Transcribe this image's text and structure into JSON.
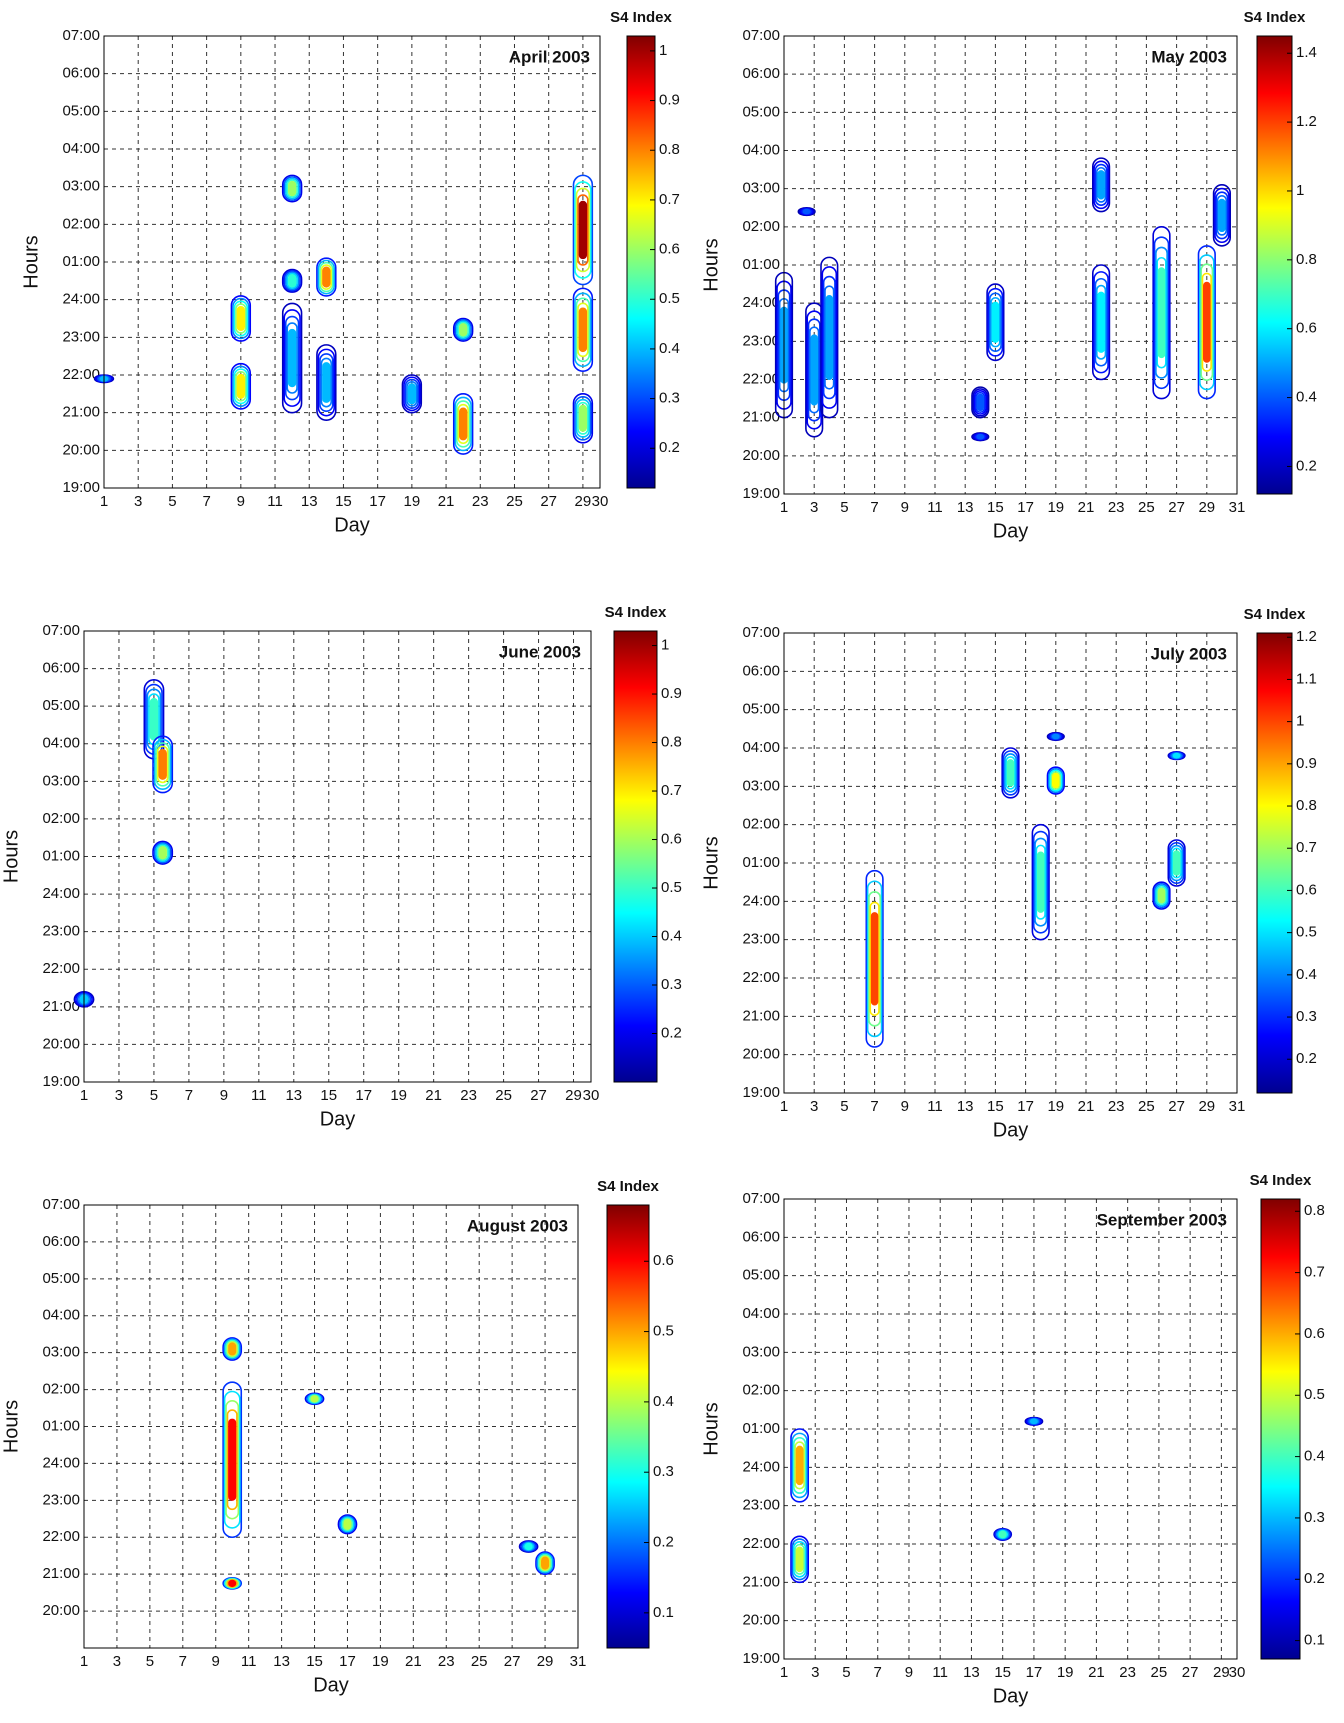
{
  "chart_data": [
    {
      "type": "contour",
      "title": "April 2003",
      "x_label": "Day",
      "y_label": "Hours",
      "colorbar_label": "S4 Index",
      "xlim": [
        1,
        30
      ],
      "xticks": [
        1,
        3,
        5,
        7,
        9,
        11,
        13,
        15,
        17,
        19,
        21,
        23,
        25,
        27,
        29,
        30
      ],
      "ylim": [
        19,
        31
      ],
      "yticks": [
        {
          "value": 19,
          "label": "19:00"
        },
        {
          "value": 20,
          "label": "20:00"
        },
        {
          "value": 21,
          "label": "21:00"
        },
        {
          "value": 22,
          "label": "22:00"
        },
        {
          "value": 23,
          "label": "23:00"
        },
        {
          "value": 24,
          "label": "24:00"
        },
        {
          "value": 25,
          "label": "01:00"
        },
        {
          "value": 26,
          "label": "02:00"
        },
        {
          "value": 27,
          "label": "03:00"
        },
        {
          "value": 28,
          "label": "04:00"
        },
        {
          "value": 29,
          "label": "05:00"
        },
        {
          "value": 30,
          "label": "06:00"
        },
        {
          "value": 31,
          "label": "07:00"
        }
      ],
      "clim": [
        0.12,
        1.03
      ],
      "cticks": [
        0.2,
        0.3,
        0.4,
        0.5,
        0.6,
        0.7,
        0.8,
        0.9,
        1
      ],
      "grid": true,
      "blobs": [
        {
          "x": 1,
          "y0": 21.8,
          "y1": 22.0,
          "peak": 0.4
        },
        {
          "x": 9,
          "y0": 22.9,
          "y1": 24.1,
          "peak": 0.7
        },
        {
          "x": 9,
          "y0": 21.1,
          "y1": 22.3,
          "peak": 0.7
        },
        {
          "x": 12,
          "y0": 26.6,
          "y1": 27.3,
          "peak": 0.6
        },
        {
          "x": 12,
          "y0": 24.2,
          "y1": 24.8,
          "peak": 0.5
        },
        {
          "x": 12,
          "y0": 21,
          "y1": 23.9,
          "peak": 0.4
        },
        {
          "x": 14,
          "y0": 24.1,
          "y1": 25.1,
          "peak": 0.8
        },
        {
          "x": 14,
          "y0": 20.8,
          "y1": 22.8,
          "peak": 0.4
        },
        {
          "x": 19,
          "y0": 21,
          "y1": 22,
          "peak": 0.4
        },
        {
          "x": 22,
          "y0": 22.9,
          "y1": 23.5,
          "peak": 0.6
        },
        {
          "x": 22,
          "y0": 19.9,
          "y1": 21.5,
          "peak": 0.8
        },
        {
          "x": 29,
          "y0": 24.4,
          "y1": 27.3,
          "peak": 1
        },
        {
          "x": 29,
          "y0": 22.1,
          "y1": 24.3,
          "peak": 0.8
        },
        {
          "x": 29,
          "y0": 20.2,
          "y1": 21.5,
          "peak": 0.6
        }
      ]
    },
    {
      "type": "contour",
      "title": "May 2003",
      "x_label": "Day",
      "y_label": "Hours",
      "colorbar_label": "S4 Index",
      "xlim": [
        1,
        31
      ],
      "xticks": [
        1,
        3,
        5,
        7,
        9,
        11,
        13,
        15,
        17,
        19,
        21,
        23,
        25,
        27,
        29,
        31
      ],
      "ylim": [
        19,
        31
      ],
      "yticks": [
        {
          "value": 19,
          "label": "19:00"
        },
        {
          "value": 20,
          "label": "20:00"
        },
        {
          "value": 21,
          "label": "21:00"
        },
        {
          "value": 22,
          "label": "22:00"
        },
        {
          "value": 23,
          "label": "23:00"
        },
        {
          "value": 24,
          "label": "24:00"
        },
        {
          "value": 25,
          "label": "01:00"
        },
        {
          "value": 26,
          "label": "02:00"
        },
        {
          "value": 27,
          "label": "03:00"
        },
        {
          "value": 28,
          "label": "04:00"
        },
        {
          "value": 29,
          "label": "05:00"
        },
        {
          "value": 30,
          "label": "06:00"
        },
        {
          "value": 31,
          "label": "07:00"
        }
      ],
      "clim": [
        0.12,
        1.45
      ],
      "cticks": [
        0.2,
        0.4,
        0.6,
        0.8,
        1,
        1.2,
        1.4
      ],
      "grid": true,
      "blobs": [
        {
          "x": 1,
          "y0": 21,
          "y1": 24.8,
          "peak": 0.5
        },
        {
          "x": 2.5,
          "y0": 26.3,
          "y1": 26.5,
          "peak": 0.4
        },
        {
          "x": 3,
          "y0": 20.5,
          "y1": 24,
          "peak": 0.5
        },
        {
          "x": 4,
          "y0": 21,
          "y1": 25.2,
          "peak": 0.5
        },
        {
          "x": 14,
          "y0": 20.4,
          "y1": 20.6,
          "peak": 0.4
        },
        {
          "x": 14,
          "y0": 21,
          "y1": 21.8,
          "peak": 0.4
        },
        {
          "x": 15,
          "y0": 22.5,
          "y1": 24.5,
          "peak": 0.6
        },
        {
          "x": 22,
          "y0": 22,
          "y1": 25,
          "peak": 0.6
        },
        {
          "x": 22,
          "y0": 26.4,
          "y1": 27.8,
          "peak": 0.5
        },
        {
          "x": 26,
          "y0": 21.5,
          "y1": 26,
          "peak": 0.7
        },
        {
          "x": 29,
          "y0": 21.5,
          "y1": 25.5,
          "peak": 1.2
        },
        {
          "x": 30,
          "y0": 25.5,
          "y1": 27.1,
          "peak": 0.5
        }
      ]
    },
    {
      "type": "contour",
      "title": "June 2003",
      "x_label": "Day",
      "y_label": "Hours",
      "colorbar_label": "S4 Index",
      "xlim": [
        1,
        30
      ],
      "xticks": [
        1,
        3,
        5,
        7,
        9,
        11,
        13,
        15,
        17,
        19,
        21,
        23,
        25,
        27,
        29,
        30
      ],
      "ylim": [
        19,
        31
      ],
      "yticks": [
        {
          "value": 19,
          "label": "19:00"
        },
        {
          "value": 20,
          "label": "20:00"
        },
        {
          "value": 21,
          "label": "21:00"
        },
        {
          "value": 22,
          "label": "22:00"
        },
        {
          "value": 23,
          "label": "23:00"
        },
        {
          "value": 24,
          "label": "24:00"
        },
        {
          "value": 25,
          "label": "01:00"
        },
        {
          "value": 26,
          "label": "02:00"
        },
        {
          "value": 27,
          "label": "03:00"
        },
        {
          "value": 28,
          "label": "04:00"
        },
        {
          "value": 29,
          "label": "05:00"
        },
        {
          "value": 30,
          "label": "06:00"
        },
        {
          "value": 31,
          "label": "07:00"
        }
      ],
      "clim": [
        0.1,
        1.03
      ],
      "cticks": [
        0.2,
        0.3,
        0.4,
        0.5,
        0.6,
        0.7,
        0.8,
        0.9,
        1
      ],
      "grid": true,
      "blobs": [
        {
          "x": 1,
          "y0": 21,
          "y1": 21.4,
          "peak": 0.4
        },
        {
          "x": 5,
          "y0": 27.6,
          "y1": 29.7,
          "peak": 0.5
        },
        {
          "x": 5.5,
          "y0": 26.7,
          "y1": 28.2,
          "peak": 0.8
        },
        {
          "x": 5.5,
          "y0": 24.8,
          "y1": 25.4,
          "peak": 0.6
        }
      ]
    },
    {
      "type": "contour",
      "title": "July 2003",
      "x_label": "Day",
      "y_label": "Hours",
      "colorbar_label": "S4 Index",
      "xlim": [
        1,
        31
      ],
      "xticks": [
        1,
        3,
        5,
        7,
        9,
        11,
        13,
        15,
        17,
        19,
        21,
        23,
        25,
        27,
        29,
        31
      ],
      "ylim": [
        19,
        31
      ],
      "yticks": [
        {
          "value": 19,
          "label": "19:00"
        },
        {
          "value": 20,
          "label": "20:00"
        },
        {
          "value": 21,
          "label": "21:00"
        },
        {
          "value": 22,
          "label": "22:00"
        },
        {
          "value": 23,
          "label": "23:00"
        },
        {
          "value": 24,
          "label": "24:00"
        },
        {
          "value": 25,
          "label": "01:00"
        },
        {
          "value": 26,
          "label": "02:00"
        },
        {
          "value": 27,
          "label": "03:00"
        },
        {
          "value": 28,
          "label": "04:00"
        },
        {
          "value": 29,
          "label": "05:00"
        },
        {
          "value": 30,
          "label": "06:00"
        },
        {
          "value": 31,
          "label": "07:00"
        }
      ],
      "clim": [
        0.12,
        1.21
      ],
      "cticks": [
        0.2,
        0.3,
        0.4,
        0.5,
        0.6,
        0.7,
        0.8,
        0.9,
        1,
        1.1,
        1.2
      ],
      "grid": true,
      "blobs": [
        {
          "x": 7,
          "y0": 20.2,
          "y1": 24.8,
          "peak": 1
        },
        {
          "x": 16,
          "y0": 26.7,
          "y1": 28,
          "peak": 0.6
        },
        {
          "x": 18,
          "y0": 23,
          "y1": 26,
          "peak": 0.6
        },
        {
          "x": 19,
          "y0": 26.8,
          "y1": 27.5,
          "peak": 0.8
        },
        {
          "x": 19,
          "y0": 28.2,
          "y1": 28.4,
          "peak": 0.4
        },
        {
          "x": 26,
          "y0": 23.8,
          "y1": 24.5,
          "peak": 0.7
        },
        {
          "x": 27,
          "y0": 24.4,
          "y1": 25.6,
          "peak": 0.6
        },
        {
          "x": 27,
          "y0": 27.7,
          "y1": 27.9,
          "peak": 0.5
        }
      ]
    },
    {
      "type": "contour",
      "title": "August 2003",
      "x_label": "Day",
      "y_label": "Hours",
      "colorbar_label": "S4 Index",
      "xlim": [
        1,
        31
      ],
      "xticks": [
        1,
        3,
        5,
        7,
        9,
        11,
        13,
        15,
        17,
        19,
        21,
        23,
        25,
        27,
        29,
        31
      ],
      "ylim": [
        19,
        31
      ],
      "yticks": [
        {
          "value": 20,
          "label": "20:00"
        },
        {
          "value": 21,
          "label": "21:00"
        },
        {
          "value": 22,
          "label": "22:00"
        },
        {
          "value": 23,
          "label": "23:00"
        },
        {
          "value": 24,
          "label": "24:00"
        },
        {
          "value": 25,
          "label": "01:00"
        },
        {
          "value": 26,
          "label": "02:00"
        },
        {
          "value": 27,
          "label": "03:00"
        },
        {
          "value": 28,
          "label": "04:00"
        },
        {
          "value": 29,
          "label": "05:00"
        },
        {
          "value": 30,
          "label": "06:00"
        },
        {
          "value": 31,
          "label": "07:00"
        }
      ],
      "clim": [
        0.05,
        0.68
      ],
      "cticks": [
        0.1,
        0.2,
        0.3,
        0.4,
        0.5,
        0.6
      ],
      "grid": true,
      "blobs": [
        {
          "x": 10,
          "y0": 26.8,
          "y1": 27.4,
          "peak": 0.5
        },
        {
          "x": 10,
          "y0": 22,
          "y1": 26.2,
          "peak": 0.6
        },
        {
          "x": 10,
          "y0": 20.6,
          "y1": 20.9,
          "peak": 0.6
        },
        {
          "x": 15,
          "y0": 25.6,
          "y1": 25.9,
          "peak": 0.4
        },
        {
          "x": 17,
          "y0": 22.1,
          "y1": 22.6,
          "peak": 0.4
        },
        {
          "x": 28,
          "y0": 21.6,
          "y1": 21.9,
          "peak": 0.3
        },
        {
          "x": 29,
          "y0": 21,
          "y1": 21.6,
          "peak": 0.5
        }
      ]
    },
    {
      "type": "contour",
      "title": "September 2003",
      "x_label": "Day",
      "y_label": "Hours",
      "colorbar_label": "S4 Index",
      "xlim": [
        1,
        30
      ],
      "xticks": [
        1,
        3,
        5,
        7,
        9,
        11,
        13,
        15,
        17,
        19,
        21,
        23,
        25,
        27,
        29,
        30
      ],
      "ylim": [
        19,
        31
      ],
      "yticks": [
        {
          "value": 19,
          "label": "19:00"
        },
        {
          "value": 20,
          "label": "20:00"
        },
        {
          "value": 21,
          "label": "21:00"
        },
        {
          "value": 22,
          "label": "22:00"
        },
        {
          "value": 23,
          "label": "23:00"
        },
        {
          "value": 24,
          "label": "24:00"
        },
        {
          "value": 25,
          "label": "01:00"
        },
        {
          "value": 26,
          "label": "02:00"
        },
        {
          "value": 27,
          "label": "03:00"
        },
        {
          "value": 28,
          "label": "04:00"
        },
        {
          "value": 29,
          "label": "05:00"
        },
        {
          "value": 30,
          "label": "06:00"
        },
        {
          "value": 31,
          "label": "07:00"
        }
      ],
      "clim": [
        0.07,
        0.82
      ],
      "cticks": [
        0.1,
        0.2,
        0.3,
        0.4,
        0.5,
        0.6,
        0.7,
        0.8
      ],
      "grid": true,
      "blobs": [
        {
          "x": 2,
          "y0": 23.1,
          "y1": 25,
          "peak": 0.6
        },
        {
          "x": 2,
          "y0": 21,
          "y1": 22.2,
          "peak": 0.5
        },
        {
          "x": 15,
          "y0": 22.1,
          "y1": 22.4,
          "peak": 0.4
        },
        {
          "x": 17,
          "y0": 25.1,
          "y1": 25.3,
          "peak": 0.3
        }
      ]
    }
  ]
}
